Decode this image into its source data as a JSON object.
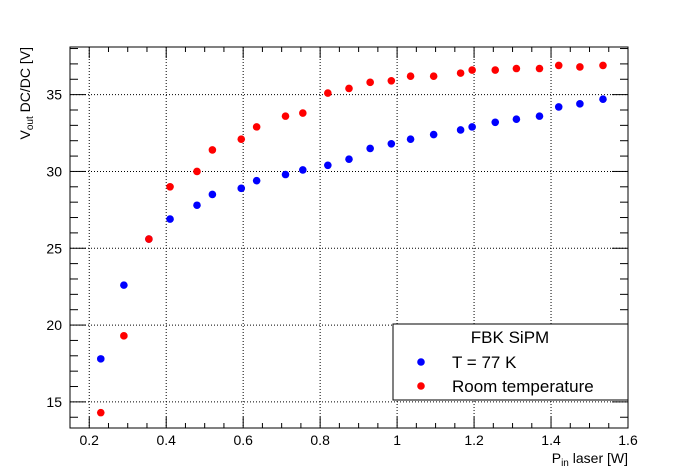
{
  "chart_data": {
    "type": "scatter",
    "xlabel": {
      "main": "P",
      "sub": "in",
      "rest": " laser [W]"
    },
    "ylabel": {
      "main": "V",
      "sub": "out",
      "rest": " DC/DC [V]"
    },
    "xlim": [
      0.15,
      1.6
    ],
    "ylim": [
      13.3,
      38.1
    ],
    "xticks": [
      0.2,
      0.4,
      0.6,
      0.8,
      1.0,
      1.2,
      1.4,
      1.6
    ],
    "xtick_labels": [
      "0.2",
      "0.4",
      "0.6",
      "0.8",
      "1",
      "1.2",
      "1.4",
      "1.6"
    ],
    "yticks": [
      15,
      20,
      25,
      30,
      35
    ],
    "ytick_labels": [
      "15",
      "20",
      "25",
      "30",
      "35"
    ],
    "grid": true,
    "legend": {
      "title": "FBK SiPM",
      "position": "bottom-right"
    },
    "series": [
      {
        "name": "T = 77 K",
        "color": "#0000ff",
        "x": [
          0.23,
          0.29,
          0.355,
          0.41,
          0.48,
          0.52,
          0.595,
          0.635,
          0.71,
          0.755,
          0.82,
          0.875,
          0.93,
          0.985,
          1.035,
          1.095,
          1.165,
          1.195,
          1.255,
          1.31,
          1.37,
          1.42,
          1.475,
          1.535
        ],
        "y": [
          17.8,
          22.6,
          25.6,
          26.9,
          27.8,
          28.5,
          28.9,
          29.4,
          29.8,
          30.1,
          30.4,
          30.8,
          31.5,
          31.8,
          32.1,
          32.4,
          32.7,
          32.9,
          33.2,
          33.4,
          33.6,
          34.2,
          34.4,
          34.7
        ]
      },
      {
        "name": "Room temperature",
        "color": "#ff0000",
        "x": [
          0.23,
          0.29,
          0.355,
          0.41,
          0.48,
          0.52,
          0.595,
          0.635,
          0.71,
          0.755,
          0.82,
          0.875,
          0.93,
          0.985,
          1.035,
          1.095,
          1.165,
          1.195,
          1.255,
          1.31,
          1.37,
          1.42,
          1.475,
          1.535
        ],
        "y": [
          14.3,
          19.3,
          25.6,
          29.0,
          30.0,
          31.4,
          32.1,
          32.9,
          33.6,
          33.8,
          35.1,
          35.4,
          35.8,
          35.9,
          36.2,
          36.2,
          36.4,
          36.6,
          36.6,
          36.7,
          36.7,
          36.9,
          36.8,
          36.9
        ]
      }
    ]
  }
}
